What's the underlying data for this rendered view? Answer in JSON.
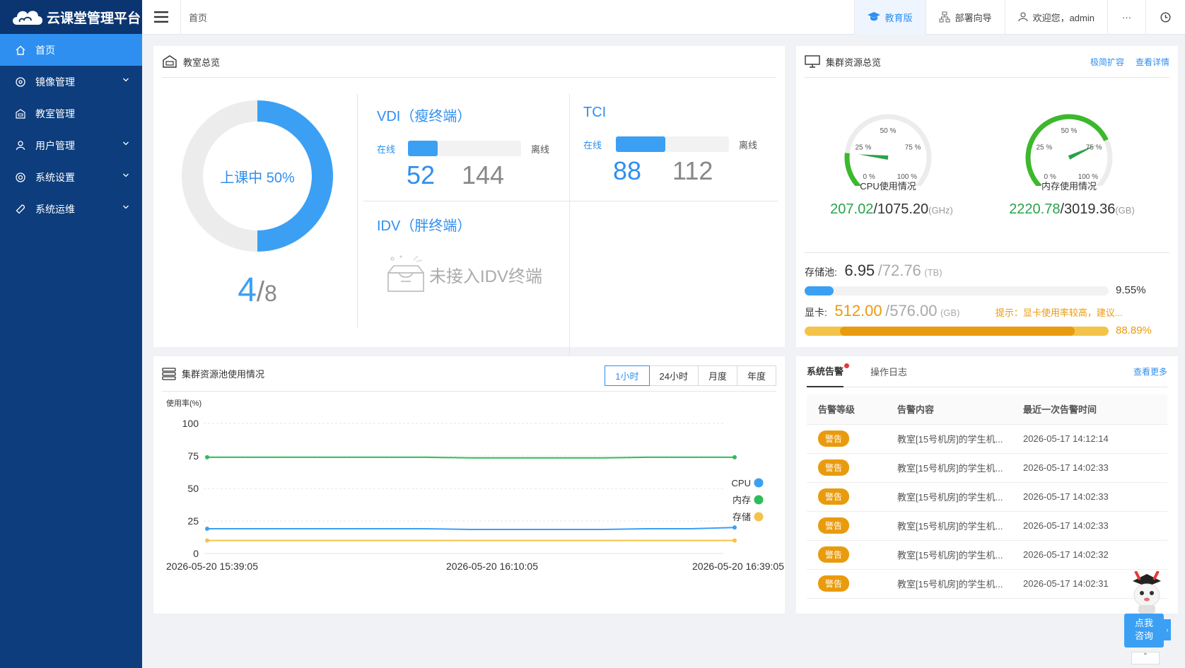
{
  "app": {
    "title": "云课堂管理平台"
  },
  "sidebar": {
    "items": [
      {
        "label": "首页",
        "icon": "home-icon",
        "active": true
      },
      {
        "label": "镜像管理",
        "icon": "disc-icon",
        "expandable": true
      },
      {
        "label": "教室管理",
        "icon": "classroom-icon",
        "expandable": false
      },
      {
        "label": "用户管理",
        "icon": "user-icon",
        "expandable": true
      },
      {
        "label": "系统设置",
        "icon": "settings-icon",
        "expandable": true
      },
      {
        "label": "系统运维",
        "icon": "wrench-icon",
        "expandable": true
      }
    ]
  },
  "header": {
    "breadcrumb": "首页",
    "edu_label": "教育版",
    "deploy_label": "部署向导",
    "welcome_label": "欢迎您，admin",
    "more_label": "···"
  },
  "classroom": {
    "title": "教室总览",
    "donut_label": "上课中 50%",
    "donut_fraction": 0.5,
    "count_active": "4",
    "count_total": "8",
    "vdi": {
      "title": "VDI（瘦终端）",
      "online_label": "在线",
      "offline_label": "离线",
      "online": "52",
      "offline": "144",
      "ratio": 0.265
    },
    "tci": {
      "title": "TCI",
      "online_label": "在线",
      "offline_label": "离线",
      "online": "88",
      "offline": "112",
      "ratio": 0.44
    },
    "idv": {
      "title": "IDV（胖终端）",
      "empty_text": "未接入IDV终端"
    }
  },
  "cluster": {
    "title": "集群资源总览",
    "link_expand": "极简扩容",
    "link_detail": "查看详情",
    "cpu": {
      "label": "CPU使用情况",
      "used": "207.02",
      "total": "/1075.20",
      "unit": "(GHz)",
      "fraction": 0.19,
      "ticks": [
        "0 %",
        "25 %",
        "50 %",
        "75 %",
        "100 %"
      ]
    },
    "mem": {
      "label": "内存使用情况",
      "used": "2220.78",
      "total": "/3019.36",
      "unit": "(GB)",
      "fraction": 0.74,
      "ticks": [
        "0 %",
        "25 %",
        "50 %",
        "75 %",
        "100 %"
      ]
    },
    "storage": {
      "label": "存储池:",
      "used": "6.95",
      "total": "/72.76",
      "unit": "(TB)",
      "percent": "9.55%",
      "fraction": 0.0955
    },
    "gpu": {
      "label": "显卡:",
      "used": "512.00",
      "total": "/576.00",
      "unit": "(GB)",
      "hint": "提示：显卡使用率较高，建议...",
      "percent": "88.89%",
      "fraction": 0.8889
    }
  },
  "pool_usage": {
    "title": "集群资源池使用情况",
    "tabs": [
      "1小时",
      "24小时",
      "月度",
      "年度"
    ],
    "active_tab": 0
  },
  "chart_data": {
    "type": "line",
    "ylabel": "使用率(%)",
    "ylim": [
      0,
      100
    ],
    "yticks": [
      "100",
      "75",
      "50",
      "25",
      "0"
    ],
    "xticks": [
      "2026-05-20 15:39:05",
      "2026-05-20 16:10:05",
      "2026-05-20 16:39:05"
    ],
    "legend_position": "right",
    "series": [
      {
        "name": "CPU",
        "color": "#3ba0f4",
        "values": [
          19,
          19,
          19,
          19,
          19,
          19,
          18.5,
          18.5,
          18.5,
          18.5,
          19,
          19,
          20
        ]
      },
      {
        "name": "内存",
        "color": "#2ebd59",
        "values": [
          74,
          74,
          74,
          74,
          74,
          74,
          73.5,
          73.5,
          73.5,
          73.5,
          74,
          74,
          74
        ]
      },
      {
        "name": "存储",
        "color": "#f4c34a",
        "values": [
          10,
          10,
          10,
          10,
          10,
          10,
          10,
          10,
          10,
          10,
          10,
          10,
          10
        ]
      }
    ]
  },
  "alerts": {
    "tab_alerts": "系统告警",
    "tab_logs": "操作日志",
    "more_link": "查看更多",
    "columns": [
      "告警等级",
      "告警内容",
      "最近一次告警时间"
    ],
    "rows": [
      {
        "level": "警告",
        "content": "教室[15号机房]的学生机...",
        "time": "2026-05-17 14:12:14"
      },
      {
        "level": "警告",
        "content": "教室[15号机房]的学生机...",
        "time": "2026-05-17 14:02:33"
      },
      {
        "level": "警告",
        "content": "教室[15号机房]的学生机...",
        "time": "2026-05-17 14:02:33"
      },
      {
        "level": "警告",
        "content": "教室[15号机房]的学生机...",
        "time": "2026-05-17 14:02:33"
      },
      {
        "level": "警告",
        "content": "教室[15号机房]的学生机...",
        "time": "2026-05-17 14:02:32"
      },
      {
        "level": "警告",
        "content": "教室[15号机房]的学生机...",
        "time": "2026-05-17 14:02:31"
      }
    ]
  },
  "consult": {
    "line1": "点我",
    "line2": "咨询"
  }
}
